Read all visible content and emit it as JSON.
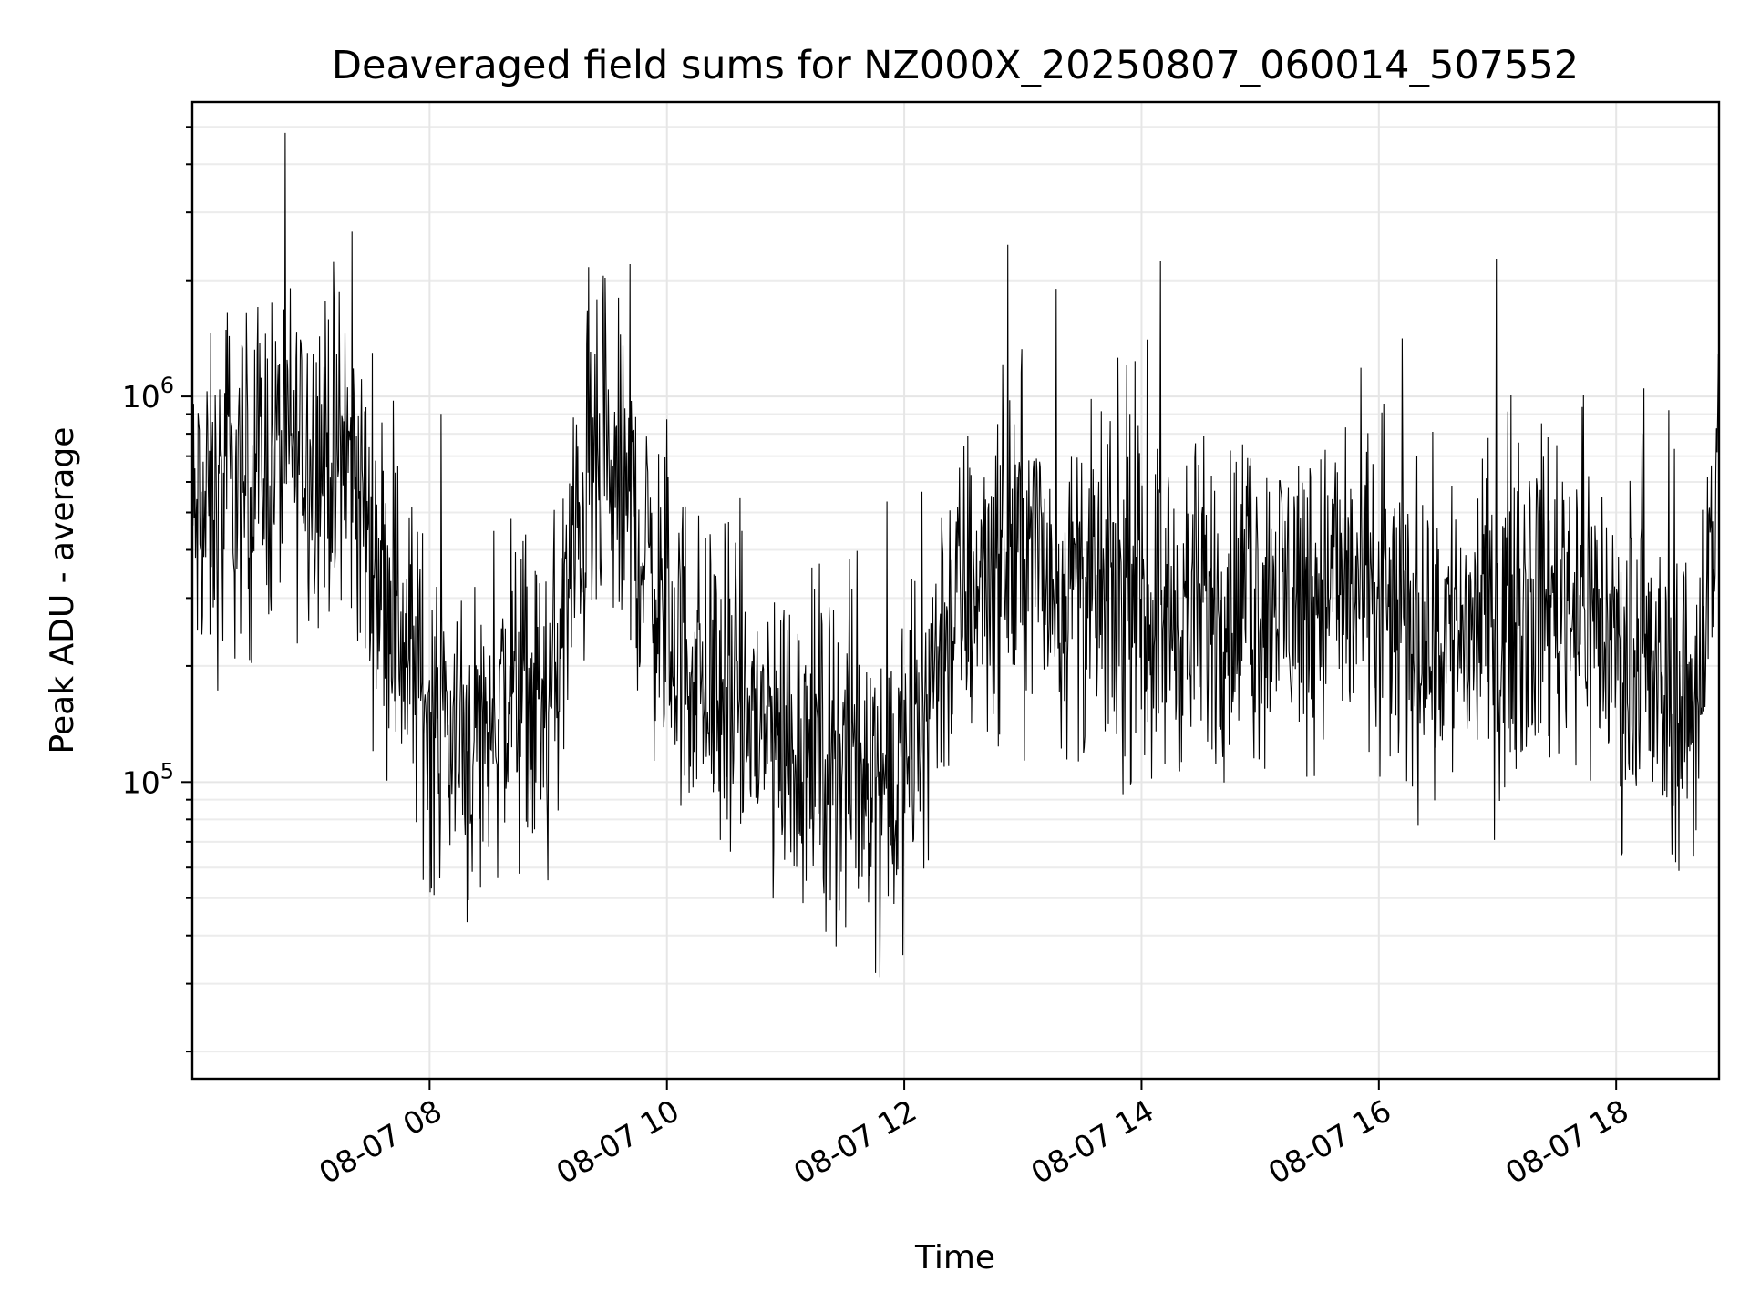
{
  "chart_data": {
    "type": "line",
    "title": "Deaveraged field sums for NZ000X_20250807_060014_507552",
    "xlabel": "Time",
    "ylabel": "Peak ADU - average",
    "yscale": "log",
    "grid": true,
    "legend": "none",
    "series_color": "#000000",
    "xlim": [
      "2025-08-07 06:00",
      "2025-08-07 18:52"
    ],
    "ylim": [
      17000,
      5800000
    ],
    "x_ticks": [
      {
        "value": "2025-08-07 08:00",
        "label": "08-07 08"
      },
      {
        "value": "2025-08-07 10:00",
        "label": "08-07 10"
      },
      {
        "value": "2025-08-07 12:00",
        "label": "08-07 12"
      },
      {
        "value": "2025-08-07 14:00",
        "label": "08-07 14"
      },
      {
        "value": "2025-08-07 16:00",
        "label": "08-07 16"
      },
      {
        "value": "2025-08-07 18:00",
        "label": "08-07 18"
      }
    ],
    "y_ticks": [
      {
        "value": 100000,
        "base": "10",
        "exp": "5"
      },
      {
        "value": 1000000,
        "base": "10",
        "exp": "6"
      }
    ],
    "series": [
      {
        "x": [
          "2025-08-07 06:00",
          "2025-08-07 06:20",
          "2025-08-07 06:40",
          "2025-08-07 07:00",
          "2025-08-07 07:20",
          "2025-08-07 07:40",
          "2025-08-07 08:00",
          "2025-08-07 08:20",
          "2025-08-07 08:40",
          "2025-08-07 09:00",
          "2025-08-07 09:20",
          "2025-08-07 09:40",
          "2025-08-07 10:00",
          "2025-08-07 10:20",
          "2025-08-07 10:40",
          "2025-08-07 11:00",
          "2025-08-07 11:20",
          "2025-08-07 11:40",
          "2025-08-07 12:00",
          "2025-08-07 12:20",
          "2025-08-07 12:40",
          "2025-08-07 13:00",
          "2025-08-07 13:20",
          "2025-08-07 13:40",
          "2025-08-07 14:00",
          "2025-08-07 14:20",
          "2025-08-07 14:40",
          "2025-08-07 15:00",
          "2025-08-07 15:20",
          "2025-08-07 15:40",
          "2025-08-07 16:00",
          "2025-08-07 16:20",
          "2025-08-07 16:40",
          "2025-08-07 17:00",
          "2025-08-07 17:20",
          "2025-08-07 17:40",
          "2025-08-07 18:00",
          "2025-08-07 18:20",
          "2025-08-07 18:40",
          "2025-08-07 18:52"
        ],
        "values": [
          450000,
          550000,
          700000,
          750000,
          650000,
          300000,
          150000,
          120000,
          170000,
          150000,
          600000,
          550000,
          250000,
          180000,
          150000,
          130000,
          120000,
          110000,
          100000,
          250000,
          350000,
          420000,
          320000,
          300000,
          280000,
          270000,
          290000,
          300000,
          310000,
          330000,
          280000,
          240000,
          250000,
          270000,
          300000,
          320000,
          220000,
          170000,
          160000,
          650000
        ]
      }
    ]
  }
}
